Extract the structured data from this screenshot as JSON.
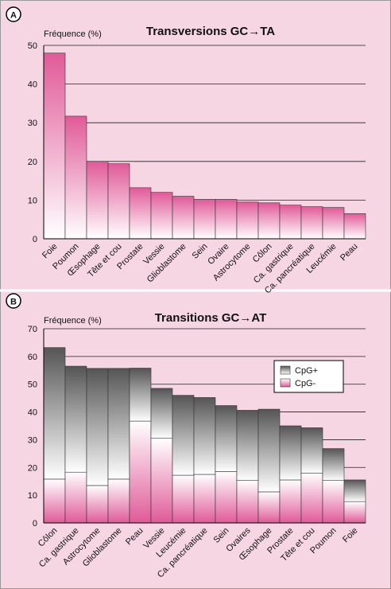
{
  "chart_data": [
    {
      "type": "bar",
      "panel_label": "A",
      "title": "Transversions GC→TA",
      "y_label": "Fréquence (%)",
      "categories": [
        "Foie",
        "Poumon",
        "Œsophage",
        "Tête et cou",
        "Prostate",
        "Vessie",
        "Glioblastome",
        "Sein",
        "Ovaire",
        "Astrocytome",
        "Côlon",
        "Ca. gastrique",
        "Ca. pancréatique",
        "Leucémie",
        "Peau"
      ],
      "values": [
        48,
        31.7,
        20,
        19.4,
        13.2,
        12,
        11,
        10.2,
        10.2,
        9.5,
        9.3,
        8.7,
        8.3,
        8.1,
        6.5
      ],
      "color": "#e05a98",
      "ylim": [
        0,
        50
      ],
      "yticks": [
        0,
        10,
        20,
        30,
        40,
        50
      ],
      "grid": true
    },
    {
      "type": "stacked-bar",
      "panel_label": "B",
      "title": "Transitions GC→AT",
      "y_label": "Fréquence (%)",
      "categories": [
        "Côlon",
        "Ca. gastrique",
        "Astrocytome",
        "Glioblastome",
        "Peau",
        "Vessie",
        "Leucémie",
        "Ca. pancréatique",
        "Sein",
        "Ovaires",
        "Œsophage",
        "Prostate",
        "Tête et cou",
        "Poumon",
        "Foie"
      ],
      "series": [
        {
          "name": "CpG+",
          "color": "#555555",
          "values": [
            47.4,
            38.2,
            42.2,
            39.9,
            19.1,
            18,
            28.8,
            27.7,
            23.8,
            25.3,
            29.8,
            19.5,
            16.3,
            11.5,
            7.8
          ]
        },
        {
          "name": "CpG-",
          "color": "#e05a98",
          "values": [
            15.8,
            18.3,
            13.5,
            15.8,
            36.7,
            30.5,
            17.2,
            17.5,
            18.5,
            15.3,
            11.2,
            15.5,
            18,
            15.3,
            7.7
          ]
        }
      ],
      "ylim": [
        0,
        70
      ],
      "yticks": [
        0,
        10,
        20,
        30,
        40,
        50,
        60,
        70
      ],
      "grid": true,
      "legend": "top-right"
    }
  ]
}
